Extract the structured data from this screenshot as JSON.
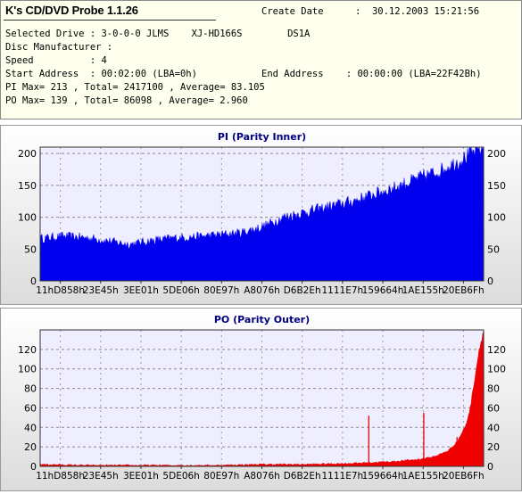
{
  "info": {
    "title": "K's CD/DVD Probe 1.1.26",
    "create_date_label": "Create Date",
    "create_date_value": ":  30.12.2003 15:21:56",
    "selected_drive": "Selected Drive : 3-0-0-0 JLMS    XJ-HD166S        DS1A",
    "disc_manufacturer": "Disc Manufacturer :",
    "speed": "Speed          : 4",
    "start_address": "Start Address  : 00:02:00 (LBA=0h)",
    "end_address": "End Address    : 00:00:00 (LBA=22F42Bh)",
    "pi_summary": "PI Max= 213 , Total= 2417100 , Average= 83.105",
    "po_summary": "PO Max= 139 , Total= 86098 , Average= 2.960"
  },
  "colors": {
    "pi_fill": "#0000ee",
    "po_fill": "#ee0000",
    "plot_bg": "#eeeeff",
    "title_text": "#000080"
  },
  "chart_data": [
    {
      "type": "area",
      "title": "PI (Parity Inner)",
      "x_ticks": [
        "11hD858h",
        "23E45h",
        "3EE01h",
        "5DE06h",
        "80E97h",
        "A8076h",
        "D6B2Eh",
        "1111E7h",
        "159664h",
        "1AE155h",
        "20EB6Fh"
      ],
      "y_ticks": [
        0,
        50,
        100,
        150,
        200
      ],
      "ylim": [
        0,
        210
      ],
      "grid": true,
      "series": [
        {
          "x": [
            0,
            0.05,
            0.1,
            0.15,
            0.2,
            0.25,
            0.3,
            0.35,
            0.4,
            0.45,
            0.5,
            0.55,
            0.6,
            0.65,
            0.7,
            0.75,
            0.8,
            0.85,
            0.9,
            0.95,
            1.0
          ],
          "values": [
            66,
            70,
            68,
            63,
            57,
            63,
            67,
            69,
            72,
            75,
            84,
            100,
            108,
            116,
            124,
            135,
            146,
            160,
            172,
            190,
            210
          ]
        }
      ]
    },
    {
      "type": "area",
      "title": "PO (Parity Outer)",
      "x_ticks": [
        "11hD858h",
        "23E45h",
        "3EE01h",
        "5DE06h",
        "80E97h",
        "A8076h",
        "D6B2Eh",
        "1111E7h",
        "159664h",
        "1AE155h",
        "20EB6Fh"
      ],
      "y_ticks": [
        0,
        20,
        40,
        60,
        80,
        100,
        120
      ],
      "ylim": [
        0,
        140
      ],
      "grid": true,
      "series": [
        {
          "x": [
            0,
            0.1,
            0.2,
            0.3,
            0.4,
            0.5,
            0.6,
            0.7,
            0.75,
            0.8,
            0.85,
            0.88,
            0.9,
            0.92,
            0.94,
            0.96,
            0.97,
            0.98,
            0.99,
            1.0
          ],
          "values": [
            2,
            1,
            1,
            1,
            1,
            2,
            2,
            3,
            4,
            5,
            7,
            9,
            12,
            16,
            25,
            42,
            60,
            90,
            120,
            139
          ]
        }
      ],
      "spikes": [
        {
          "x": 0.741,
          "value": 52
        },
        {
          "x": 0.865,
          "value": 55
        },
        {
          "x": 0.94,
          "value": 30
        }
      ]
    }
  ]
}
